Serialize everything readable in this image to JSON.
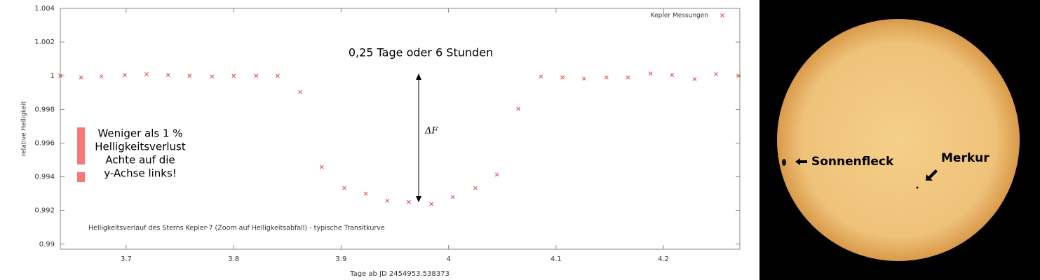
{
  "chart_data": {
    "type": "scatter",
    "xlabel": "Tage ab JD 2454953.538373",
    "ylabel": "relative Helligkeit",
    "caption": "Helligkeitsverlauf des Sterns Kepler-7 (Zoom auf Helligkeitsabfall) - typische Transitkurve",
    "annotations": {
      "duration": "0,25 Tage oder 6 Stunden",
      "delta": "ΔF",
      "note": [
        "Weniger als 1 %",
        "Helligkeitsverlust",
        "Achte auf die",
        "y-Achse links!"
      ]
    },
    "legend": "top-right",
    "series": [
      {
        "name": "Kepler Messungen",
        "color": "#e8413c",
        "x": [
          3.6387,
          3.658,
          3.677,
          3.6987,
          3.719,
          3.739,
          3.759,
          3.78,
          3.8,
          3.821,
          3.841,
          3.862,
          3.882,
          3.903,
          3.923,
          3.943,
          3.963,
          3.984,
          4.004,
          4.025,
          4.045,
          4.065,
          4.086,
          4.106,
          4.126,
          4.147,
          4.167,
          4.188,
          4.208,
          4.229,
          4.249,
          4.27
        ],
        "values": [
          1.0,
          0.9999,
          0.99996,
          1.00004,
          1.0001,
          1.00004,
          1.0,
          0.99996,
          1.0,
          1.0,
          1.0,
          0.99904,
          0.99458,
          0.99333,
          0.993,
          0.99258,
          0.9925,
          0.99238,
          0.9928,
          0.99333,
          0.99413,
          0.99804,
          0.99996,
          0.9999,
          0.99983,
          0.9999,
          0.9999,
          1.00013,
          1.00004,
          0.9998,
          1.0001,
          1.0
        ]
      }
    ],
    "xlim": [
      3.6387,
      4.2711
    ],
    "ylim": [
      0.9897,
      1.004
    ],
    "xticks": [
      3.7,
      3.8,
      3.9,
      4,
      4.1,
      4.2
    ],
    "yticks": [
      1.004,
      1.002,
      1,
      0.998,
      0.996,
      0.994,
      0.992,
      0.99
    ]
  },
  "image": {
    "labels": [
      "Sonnenfleck",
      "Merkur"
    ]
  }
}
